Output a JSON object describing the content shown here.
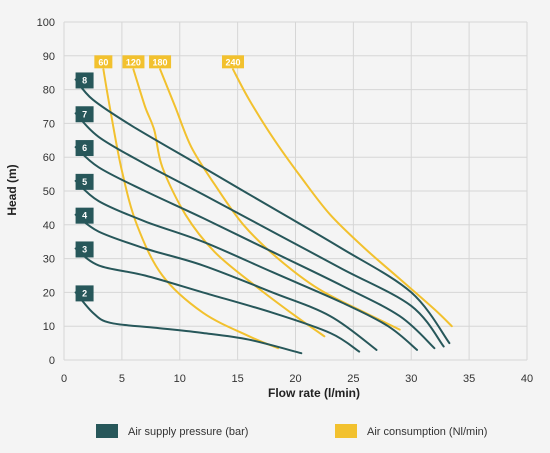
{
  "chart_data": {
    "type": "line",
    "title": "",
    "xlabel": "Flow rate (l/min)",
    "ylabel": "Head (m)",
    "xlim": [
      0,
      40
    ],
    "ylim": [
      0,
      100
    ],
    "xticks": [
      0,
      5,
      10,
      15,
      20,
      25,
      30,
      35,
      40
    ],
    "yticks": [
      0,
      10,
      20,
      30,
      40,
      50,
      60,
      70,
      80,
      90,
      100
    ],
    "grid": true,
    "legend_position": "bottom",
    "colors": {
      "pressure": "#27575a",
      "consumption": "#f2c12e",
      "grid": "#d6d6d6",
      "background": "#f4f4f4"
    },
    "pressure_series": [
      {
        "name": "Air supply pressure (bar)",
        "label": "8",
        "points": [
          [
            1,
            83
          ],
          [
            2.5,
            77
          ],
          [
            6,
            69
          ],
          [
            12,
            57
          ],
          [
            18,
            45
          ],
          [
            24,
            33
          ],
          [
            30,
            20
          ],
          [
            33.3,
            5
          ]
        ]
      },
      {
        "name": "Air supply pressure (bar)",
        "label": "7",
        "points": [
          [
            1,
            73
          ],
          [
            3,
            66
          ],
          [
            7,
            58
          ],
          [
            12,
            49
          ],
          [
            18,
            38
          ],
          [
            24,
            27
          ],
          [
            30,
            16
          ],
          [
            32.8,
            4
          ]
        ]
      },
      {
        "name": "Air supply pressure (bar)",
        "label": "6",
        "points": [
          [
            1,
            63
          ],
          [
            3,
            57
          ],
          [
            7,
            50
          ],
          [
            12,
            42
          ],
          [
            18,
            32
          ],
          [
            24,
            22
          ],
          [
            29,
            13
          ],
          [
            32,
            3.5
          ]
        ]
      },
      {
        "name": "Air supply pressure (bar)",
        "label": "5",
        "points": [
          [
            1,
            53
          ],
          [
            3,
            47
          ],
          [
            7,
            41
          ],
          [
            12,
            35
          ],
          [
            18,
            26
          ],
          [
            24,
            17
          ],
          [
            28,
            10
          ],
          [
            30.5,
            3
          ]
        ]
      },
      {
        "name": "Air supply pressure (bar)",
        "label": "4",
        "points": [
          [
            1,
            43
          ],
          [
            3,
            38
          ],
          [
            7,
            33
          ],
          [
            12,
            28
          ],
          [
            18,
            20
          ],
          [
            23,
            13
          ],
          [
            27,
            3
          ]
        ]
      },
      {
        "name": "Air supply pressure (bar)",
        "label": "3",
        "points": [
          [
            1,
            33
          ],
          [
            3,
            28
          ],
          [
            7,
            25
          ],
          [
            12,
            20
          ],
          [
            18,
            14
          ],
          [
            23,
            8
          ],
          [
            25.5,
            2.5
          ]
        ]
      },
      {
        "name": "Air supply pressure (bar)",
        "label": "2",
        "points": [
          [
            1,
            20
          ],
          [
            2.5,
            14
          ],
          [
            4,
            11
          ],
          [
            8,
            9.5
          ],
          [
            12,
            8
          ],
          [
            16,
            6
          ],
          [
            20.5,
            2
          ]
        ]
      }
    ],
    "consumption_series": [
      {
        "name": "Air consumption (Nl/min)",
        "label": "60",
        "points": [
          [
            3.4,
            86
          ],
          [
            4,
            74
          ],
          [
            5,
            56
          ],
          [
            6.3,
            40
          ],
          [
            8.5,
            25
          ],
          [
            12,
            14
          ],
          [
            16,
            7
          ],
          [
            18.5,
            3.5
          ]
        ]
      },
      {
        "name": "Air consumption (Nl/min)",
        "label": "120",
        "points": [
          [
            6,
            86
          ],
          [
            7,
            75
          ],
          [
            7.8,
            68
          ],
          [
            8.5,
            57
          ],
          [
            10.5,
            43
          ],
          [
            13,
            32
          ],
          [
            16.5,
            22
          ],
          [
            20,
            13
          ],
          [
            22.5,
            7
          ]
        ]
      },
      {
        "name": "Air consumption (Nl/min)",
        "label": "180",
        "points": [
          [
            8.3,
            86
          ],
          [
            9.6,
            75
          ],
          [
            11,
            63
          ],
          [
            13,
            52
          ],
          [
            15.5,
            40
          ],
          [
            18.5,
            30
          ],
          [
            22,
            21
          ],
          [
            26,
            14
          ],
          [
            29,
            9
          ]
        ]
      },
      {
        "name": "Air consumption (Nl/min)",
        "label": "240",
        "points": [
          [
            14.6,
            86
          ],
          [
            16,
            77
          ],
          [
            18,
            66
          ],
          [
            20.5,
            54
          ],
          [
            23,
            43
          ],
          [
            26,
            33
          ],
          [
            29,
            24
          ],
          [
            32,
            15
          ],
          [
            33.5,
            10
          ]
        ]
      }
    ],
    "legend": [
      {
        "key": "pressure",
        "label": "Air supply pressure (bar)"
      },
      {
        "key": "consumption",
        "label": "Air consumption (Nl/min)"
      }
    ]
  }
}
